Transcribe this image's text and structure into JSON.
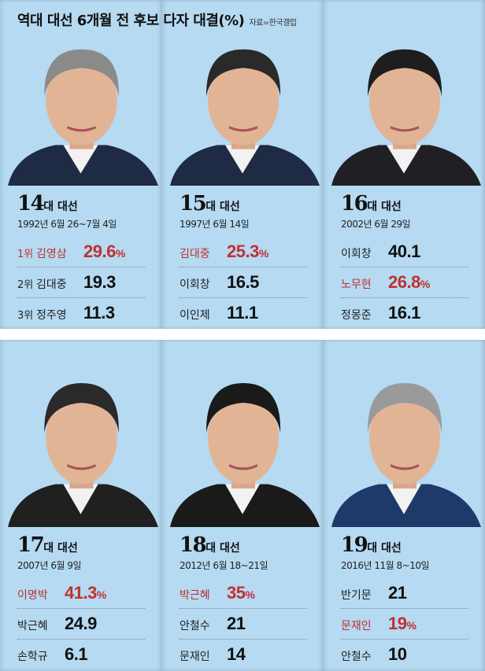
{
  "title": "역대 대선 6개월 전 후보 다자 대결(%)",
  "source": "자료=한국갤럽",
  "colors": {
    "background": "#b5daf2",
    "winner": "#c0302f"
  },
  "elections": [
    {
      "num": "14",
      "suffix": "대 대선",
      "date": "1992년 6월 26~7월 4일",
      "rows": [
        {
          "rank": "1위",
          "name": "김영삼",
          "value": "29.6",
          "pct": "%",
          "winner": true
        },
        {
          "rank": "2위",
          "name": "김대중",
          "value": "19.3",
          "pct": "",
          "winner": false
        },
        {
          "rank": "3위",
          "name": "정주영",
          "value": "11.3",
          "pct": "",
          "winner": false
        }
      ]
    },
    {
      "num": "15",
      "suffix": "대 대선",
      "date": "1997년 6월 14일",
      "rows": [
        {
          "rank": "",
          "name": "김대중",
          "value": "25.3",
          "pct": "%",
          "winner": true
        },
        {
          "rank": "",
          "name": "이회창",
          "value": "16.5",
          "pct": "",
          "winner": false
        },
        {
          "rank": "",
          "name": "이인제",
          "value": "11.1",
          "pct": "",
          "winner": false
        }
      ]
    },
    {
      "num": "16",
      "suffix": "대 대선",
      "date": "2002년 6월 29일",
      "rows": [
        {
          "rank": "",
          "name": "이회창",
          "value": "40.1",
          "pct": "",
          "winner": false
        },
        {
          "rank": "",
          "name": "노무현",
          "value": "26.8",
          "pct": "%",
          "winner": true
        },
        {
          "rank": "",
          "name": "정몽준",
          "value": "16.1",
          "pct": "",
          "winner": false
        }
      ]
    },
    {
      "num": "17",
      "suffix": "대 대선",
      "date": "2007년 6월 9일",
      "rows": [
        {
          "rank": "",
          "name": "이명박",
          "value": "41.3",
          "pct": "%",
          "winner": true
        },
        {
          "rank": "",
          "name": "박근혜",
          "value": "24.9",
          "pct": "",
          "winner": false
        },
        {
          "rank": "",
          "name": "손학규",
          "value": "6.1",
          "pct": "",
          "winner": false
        }
      ]
    },
    {
      "num": "18",
      "suffix": "대 대선",
      "date": "2012년 6월 18~21일",
      "rows": [
        {
          "rank": "",
          "name": "박근혜",
          "value": "35",
          "pct": "%",
          "winner": true
        },
        {
          "rank": "",
          "name": "안철수",
          "value": "21",
          "pct": "",
          "winner": false
        },
        {
          "rank": "",
          "name": "문재인",
          "value": "14",
          "pct": "",
          "winner": false
        }
      ]
    },
    {
      "num": "19",
      "suffix": "대 대선",
      "date": "2016년 11월 8~10일",
      "rows": [
        {
          "rank": "",
          "name": "반기문",
          "value": "21",
          "pct": "",
          "winner": false
        },
        {
          "rank": "",
          "name": "문재인",
          "value": "19",
          "pct": "%",
          "winner": true
        },
        {
          "rank": "",
          "name": "안철수",
          "value": "10",
          "pct": "",
          "winner": false
        }
      ]
    }
  ]
}
